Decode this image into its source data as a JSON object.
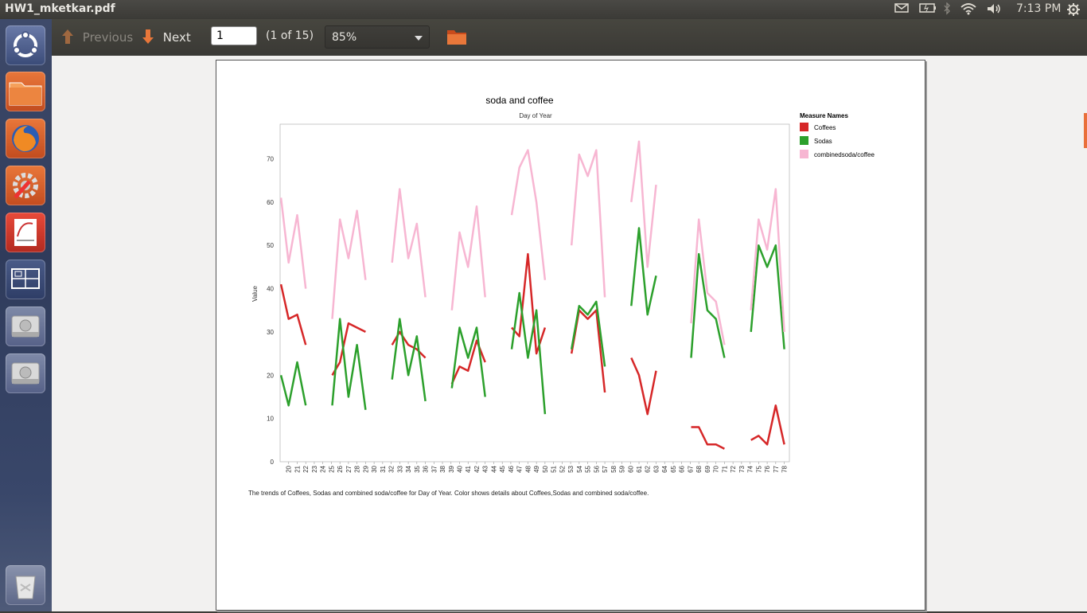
{
  "window": {
    "title": "HW1_mketkar.pdf"
  },
  "tray": {
    "time": "7:13 PM"
  },
  "toolbar": {
    "previous_label": "Previous",
    "next_label": "Next",
    "page_value": "1",
    "page_count": "(1 of 15)",
    "zoom": "85%"
  },
  "launcher": {
    "items": [
      "ubuntu-dash",
      "files",
      "firefox",
      "system-settings",
      "document-viewer",
      "workspace-switcher",
      "disk-1",
      "disk-2",
      "trash"
    ]
  },
  "colors": {
    "coffees": "#d62728",
    "sodas": "#2ca02c",
    "combined": "#f7b6d2"
  },
  "chart_data": {
    "type": "line",
    "title": "soda and coffee",
    "xlabel": "Day of Year",
    "ylabel": "Value",
    "ylim": [
      0,
      78
    ],
    "yticks": [
      0,
      10,
      20,
      30,
      40,
      50,
      60,
      70
    ],
    "x_ticks": [
      20,
      21,
      22,
      23,
      24,
      25,
      26,
      27,
      28,
      29,
      30,
      31,
      32,
      33,
      34,
      35,
      36,
      37,
      38,
      39,
      40,
      41,
      42,
      43,
      44,
      45,
      46,
      47,
      48,
      49,
      50,
      51,
      52,
      53,
      54,
      55,
      56,
      57,
      58,
      59,
      60,
      61,
      62,
      63,
      64,
      65,
      66,
      67,
      68,
      69,
      70,
      71,
      72,
      73,
      74,
      75,
      76,
      77,
      78
    ],
    "legend_title": "Measure Names",
    "legend_position": "right",
    "series": [
      {
        "name": "Coffees",
        "segments": [
          [
            [
              19.1,
              41
            ],
            [
              20,
              33
            ],
            [
              21,
              34
            ],
            [
              22,
              27
            ]
          ],
          [
            [
              25.1,
              20
            ],
            [
              26,
              23
            ],
            [
              27,
              32
            ],
            [
              28,
              31
            ],
            [
              29,
              30
            ]
          ],
          [
            [
              32.1,
              27
            ],
            [
              33,
              30
            ],
            [
              34,
              27
            ],
            [
              35,
              26
            ],
            [
              36,
              24
            ]
          ],
          [
            [
              39.1,
              18
            ],
            [
              40,
              22
            ],
            [
              41,
              21
            ],
            [
              42,
              28
            ],
            [
              43,
              23
            ]
          ],
          [
            [
              46.1,
              31
            ],
            [
              47,
              29
            ],
            [
              48,
              48
            ],
            [
              49,
              25
            ],
            [
              50,
              31
            ]
          ],
          [
            [
              53.1,
              25
            ],
            [
              54,
              35
            ],
            [
              55,
              33
            ],
            [
              56,
              35
            ],
            [
              57,
              16
            ]
          ],
          [
            [
              60.1,
              24
            ],
            [
              61,
              20
            ],
            [
              62,
              11
            ],
            [
              63,
              21
            ]
          ],
          [
            [
              67.1,
              8
            ],
            [
              68,
              8
            ],
            [
              69,
              4
            ],
            [
              70,
              4
            ],
            [
              71,
              3
            ]
          ],
          [
            [
              74.1,
              5
            ],
            [
              75,
              6
            ],
            [
              76,
              4
            ],
            [
              77,
              13
            ],
            [
              78,
              4
            ]
          ]
        ]
      },
      {
        "name": "Sodas",
        "segments": [
          [
            [
              19.1,
              20
            ],
            [
              20,
              13
            ],
            [
              21,
              23
            ],
            [
              22,
              13
            ]
          ],
          [
            [
              25.1,
              13
            ],
            [
              26,
              33
            ],
            [
              27,
              15
            ],
            [
              28,
              27
            ],
            [
              29,
              12
            ]
          ],
          [
            [
              32.1,
              19
            ],
            [
              33,
              33
            ],
            [
              34,
              20
            ],
            [
              35,
              29
            ],
            [
              36,
              14
            ]
          ],
          [
            [
              39.1,
              17
            ],
            [
              40,
              31
            ],
            [
              41,
              24
            ],
            [
              42,
              31
            ],
            [
              43,
              15
            ]
          ],
          [
            [
              46.1,
              26
            ],
            [
              47,
              39
            ],
            [
              48,
              24
            ],
            [
              49,
              35
            ],
            [
              50,
              11
            ]
          ],
          [
            [
              53.1,
              26
            ],
            [
              54,
              36
            ],
            [
              55,
              34
            ],
            [
              56,
              37
            ],
            [
              57,
              22
            ]
          ],
          [
            [
              60.1,
              36
            ],
            [
              61,
              54
            ],
            [
              62,
              34
            ],
            [
              63,
              43
            ]
          ],
          [
            [
              67.1,
              24
            ],
            [
              68,
              48
            ],
            [
              69,
              35
            ],
            [
              70,
              33
            ],
            [
              71,
              24
            ]
          ],
          [
            [
              74.1,
              30
            ],
            [
              75,
              50
            ],
            [
              76,
              45
            ],
            [
              77,
              50
            ],
            [
              78,
              26
            ]
          ]
        ]
      },
      {
        "name": "combinedsoda/coffee",
        "segments": [
          [
            [
              19.1,
              61
            ],
            [
              20,
              46
            ],
            [
              21,
              57
            ],
            [
              22,
              40
            ]
          ],
          [
            [
              25.1,
              33
            ],
            [
              26,
              56
            ],
            [
              27,
              47
            ],
            [
              28,
              58
            ],
            [
              29,
              42
            ]
          ],
          [
            [
              32.1,
              46
            ],
            [
              33,
              63
            ],
            [
              34,
              47
            ],
            [
              35,
              55
            ],
            [
              36,
              38
            ]
          ],
          [
            [
              39.1,
              35
            ],
            [
              40,
              53
            ],
            [
              41,
              45
            ],
            [
              42,
              59
            ],
            [
              43,
              38
            ]
          ],
          [
            [
              46.1,
              57
            ],
            [
              47,
              68
            ],
            [
              48,
              72
            ],
            [
              49,
              60
            ],
            [
              50,
              42
            ]
          ],
          [
            [
              53.1,
              50
            ],
            [
              54,
              71
            ],
            [
              55,
              66
            ],
            [
              56,
              72
            ],
            [
              57,
              38
            ]
          ],
          [
            [
              60.1,
              60
            ],
            [
              61,
              74
            ],
            [
              62,
              45
            ],
            [
              63,
              64
            ]
          ],
          [
            [
              67.1,
              32
            ],
            [
              68,
              56
            ],
            [
              69,
              39
            ],
            [
              70,
              37
            ],
            [
              71,
              27
            ]
          ],
          [
            [
              74.1,
              35
            ],
            [
              75,
              56
            ],
            [
              76,
              49
            ],
            [
              77,
              63
            ],
            [
              78,
              30
            ]
          ]
        ]
      }
    ],
    "caption": "The trends of Coffees, Sodas and combined soda/coffee for Day of Year. Color shows details about Coffees,Sodas and combined soda/coffee."
  }
}
